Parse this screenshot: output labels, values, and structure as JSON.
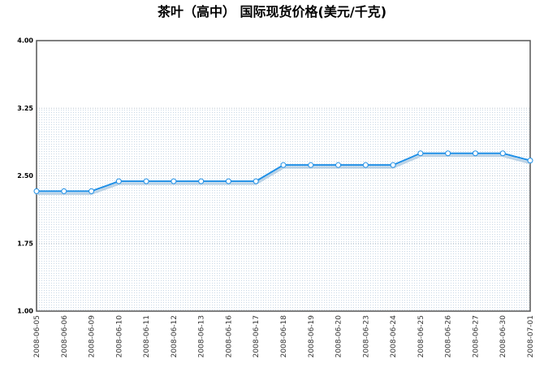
{
  "chart_data": {
    "type": "line",
    "title": "茶叶（高中） 国际现货价格(美元/千克)",
    "categories": [
      "2008-06-05",
      "2008-06-06",
      "2008-06-09",
      "2008-06-10",
      "2008-06-11",
      "2008-06-12",
      "2008-06-13",
      "2008-06-16",
      "2008-06-17",
      "2008-06-18",
      "2008-06-19",
      "2008-06-20",
      "2008-06-23",
      "2008-06-24",
      "2008-06-25",
      "2008-06-26",
      "2008-06-27",
      "2008-06-30",
      "2008-07-01"
    ],
    "series": [
      {
        "color": "#1f8fe6",
        "values": [
          2.33,
          2.33,
          2.33,
          2.44,
          2.44,
          2.44,
          2.44,
          2.44,
          2.44,
          2.62,
          2.62,
          2.62,
          2.62,
          2.62,
          2.75,
          2.75,
          2.75,
          2.75,
          2.67
        ]
      }
    ],
    "ylim": [
      1.0,
      4.0
    ],
    "yticks": [
      {
        "value": 1.0,
        "label": "1.00"
      },
      1.75,
      {
        "value": 2.5,
        "label": "2.50"
      },
      3.25,
      {
        "value": 4.0,
        "label": "4.00"
      }
    ],
    "grid": true
  }
}
